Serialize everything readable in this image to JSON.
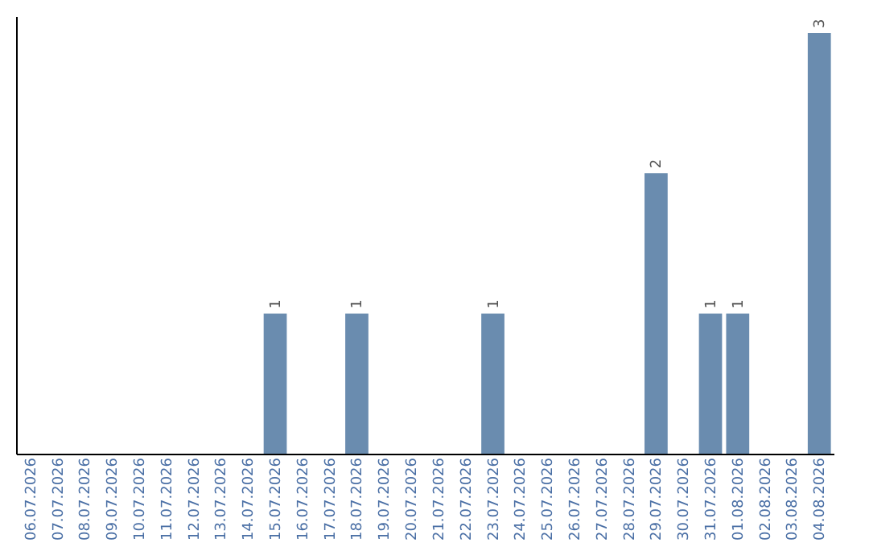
{
  "chart_data": {
    "type": "bar",
    "categories": [
      "06.07.2026",
      "07.07.2026",
      "08.07.2026",
      "09.07.2026",
      "10.07.2026",
      "11.07.2026",
      "12.07.2026",
      "13.07.2026",
      "14.07.2026",
      "15.07.2026",
      "16.07.2026",
      "17.07.2026",
      "18.07.2026",
      "19.07.2026",
      "20.07.2026",
      "21.07.2026",
      "22.07.2026",
      "23.07.2026",
      "24.07.2026",
      "25.07.2026",
      "26.07.2026",
      "27.07.2026",
      "28.07.2026",
      "29.07.2026",
      "30.07.2026",
      "31.07.2026",
      "01.08.2026",
      "02.08.2026",
      "03.08.2026",
      "04.08.2026"
    ],
    "values": [
      0,
      0,
      0,
      0,
      0,
      0,
      0,
      0,
      0,
      1,
      0,
      0,
      1,
      0,
      0,
      0,
      0,
      1,
      0,
      0,
      0,
      0,
      0,
      2,
      0,
      1,
      1,
      0,
      0,
      3
    ],
    "value_labels": [
      null,
      null,
      null,
      null,
      null,
      null,
      null,
      null,
      null,
      "1",
      null,
      null,
      "1",
      null,
      null,
      null,
      null,
      "1",
      null,
      null,
      null,
      null,
      null,
      "2",
      null,
      "1",
      "1",
      null,
      null,
      "3"
    ],
    "color": "#6a8caf",
    "grid": false,
    "tick_labels": "x"
  }
}
